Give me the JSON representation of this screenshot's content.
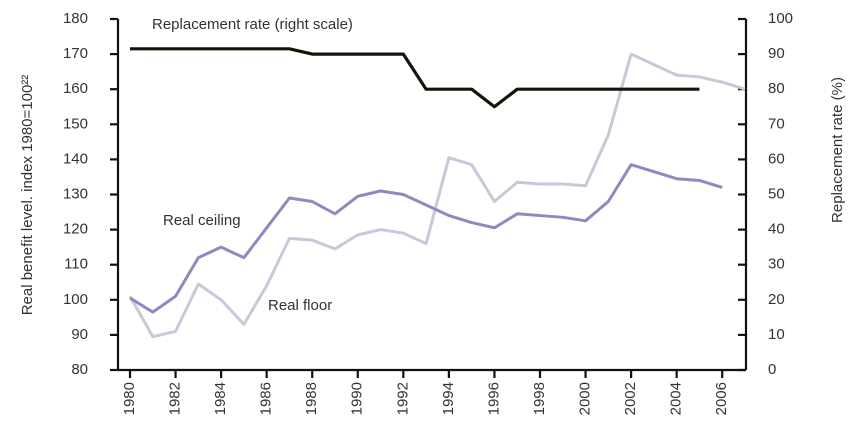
{
  "chart_data": {
    "type": "line",
    "y_label": "Real benefit level. index 1980=100²²",
    "y2_label": "Replacement rate (%)",
    "annotations": [
      "Replacement rate (right scale)",
      "Real ceiling",
      "Real floor"
    ],
    "x": [
      1980,
      1981,
      1982,
      1983,
      1984,
      1985,
      1986,
      1987,
      1988,
      1989,
      1990,
      1991,
      1992,
      1993,
      1994,
      1995,
      1996,
      1997,
      1998,
      1999,
      2000,
      2001,
      2002,
      2003,
      2004,
      2005,
      2006,
      2007
    ],
    "series": [
      {
        "name": "Replacement rate (right scale)",
        "color": "#1a1208",
        "axis": "y2",
        "values": [
          91.5,
          91.5,
          91.5,
          91.5,
          91.5,
          91.5,
          91.5,
          91.5,
          90,
          90,
          90,
          90,
          90,
          80,
          80,
          80,
          75,
          80,
          80,
          80,
          80,
          80,
          80,
          80,
          80,
          80,
          null,
          null
        ]
      },
      {
        "name": "Real ceiling",
        "color": "#8b8bbf",
        "values": [
          100.5,
          96.5,
          101,
          112,
          115,
          112,
          120.5,
          129,
          128,
          124.5,
          129.5,
          131,
          130,
          127,
          124,
          122,
          120.5,
          124.5,
          124,
          123.5,
          122.5,
          128,
          138.5,
          136.5,
          134.5,
          134,
          132,
          null
        ]
      },
      {
        "name": "Real floor",
        "color": "#c8c8d8",
        "values": [
          101,
          89.5,
          91,
          104.5,
          100,
          93,
          104,
          117.5,
          117,
          114.5,
          118.5,
          120,
          119,
          116,
          140.5,
          138.5,
          128,
          133.5,
          133,
          133,
          132.5,
          147,
          170,
          167,
          164,
          163.5,
          162,
          160
        ]
      }
    ],
    "xlim": [
      1980,
      2007
    ],
    "xticks": [
      1980,
      1982,
      1984,
      1986,
      1988,
      1990,
      1992,
      1994,
      1996,
      1998,
      2000,
      2002,
      2004,
      2006
    ],
    "ylim": [
      80,
      180
    ],
    "yticks": [
      80,
      90,
      100,
      110,
      120,
      130,
      140,
      150,
      160,
      170,
      180
    ],
    "y2lim": [
      0,
      100
    ],
    "y2ticks": [
      0,
      10,
      20,
      30,
      40,
      50,
      60,
      70,
      80,
      90,
      100
    ],
    "grid": false
  }
}
